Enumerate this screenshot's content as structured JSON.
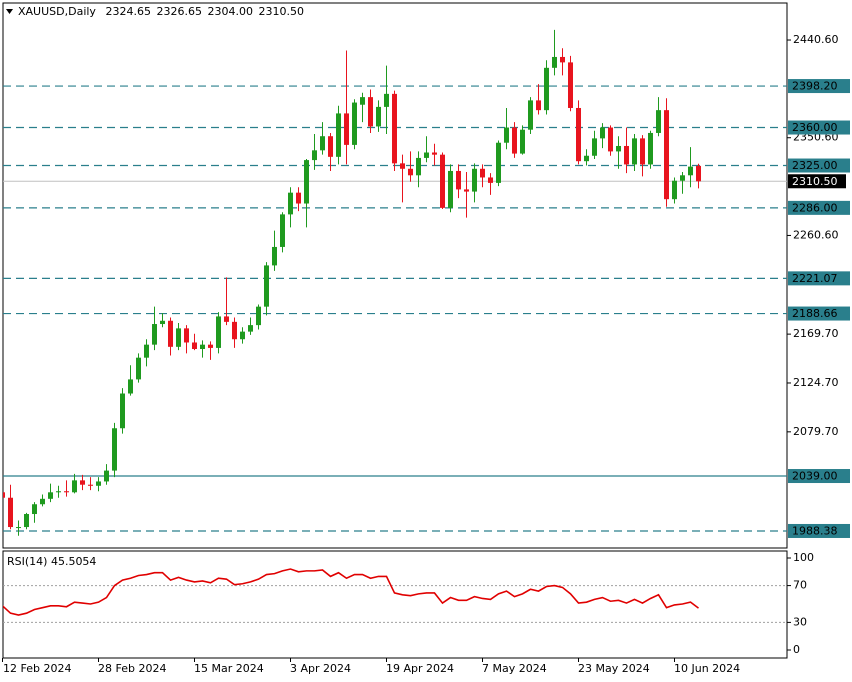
{
  "chart_data": {
    "type": "candlestick",
    "title": "XAUUSD,Daily",
    "title_values": [
      "2324.65",
      "2326.65",
      "2304.00",
      "2310.50"
    ],
    "categories": [
      "12 Feb 2024",
      null,
      null,
      null,
      null,
      null,
      null,
      null,
      null,
      null,
      null,
      null,
      "28 Feb 2024",
      null,
      null,
      null,
      null,
      null,
      null,
      null,
      null,
      null,
      null,
      null,
      "15 Mar 2024",
      null,
      null,
      null,
      null,
      null,
      null,
      null,
      null,
      null,
      null,
      null,
      "3 Apr 2024",
      null,
      null,
      null,
      null,
      null,
      null,
      null,
      null,
      null,
      null,
      null,
      "19 Apr 2024",
      null,
      null,
      null,
      null,
      null,
      null,
      null,
      null,
      null,
      null,
      null,
      "7 May 2024",
      null,
      null,
      null,
      null,
      null,
      null,
      null,
      null,
      null,
      null,
      null,
      "23 May 2024",
      null,
      null,
      null,
      null,
      null,
      null,
      null,
      null,
      null,
      null,
      null,
      "10 Jun 2024",
      null,
      null,
      null
    ],
    "open": [
      2024,
      2019,
      1992,
      1992,
      2004,
      2013,
      2018,
      2024,
      2025,
      2024,
      2035,
      2031,
      2030,
      2034,
      2044,
      2083,
      2115,
      2128,
      2148,
      2160,
      2179,
      2182,
      2158,
      2175,
      2162,
      2156,
      2160,
      2157,
      2186,
      2181,
      2165,
      2172,
      2178,
      2195,
      2233,
      2250,
      2280,
      2300,
      2290,
      2330,
      2339,
      2352,
      2333,
      2373,
      2344,
      2381,
      2388,
      2361,
      2379,
      2391,
      2327,
      2322,
      2316,
      2332,
      2337,
      2335,
      2286,
      2320,
      2303,
      2301,
      2322,
      2314,
      2309,
      2346,
      2360,
      2336,
      2358,
      2385,
      2376,
      2415,
      2425,
      2420,
      2378,
      2329,
      2334,
      2350,
      2360,
      2338,
      2343,
      2326,
      2350,
      2326,
      2355,
      2376,
      2294,
      2311,
      2316,
      2324.65
    ],
    "high": [
      2032,
      2031,
      1998,
      2005,
      2015,
      2022,
      2032,
      2030,
      2035,
      2041,
      2040,
      2038,
      2038,
      2050,
      2088,
      2120,
      2141,
      2152,
      2165,
      2195,
      2189,
      2185,
      2180,
      2178,
      2170,
      2164,
      2163,
      2190,
      2222,
      2185,
      2176,
      2185,
      2197,
      2236,
      2265,
      2282,
      2305,
      2305,
      2331,
      2354,
      2365,
      2355,
      2380,
      2431,
      2386,
      2392,
      2395,
      2385,
      2417,
      2394,
      2335,
      2338,
      2338,
      2352,
      2345,
      2337,
      2326,
      2326,
      2319,
      2327,
      2326,
      2318,
      2348,
      2378,
      2365,
      2362,
      2388,
      2400,
      2422,
      2450,
      2433,
      2426,
      2385,
      2340,
      2357,
      2364,
      2362,
      2352,
      2360,
      2354,
      2353,
      2357,
      2388,
      2387,
      2314,
      2319,
      2342,
      2326.65
    ],
    "low": [
      2011,
      1990,
      1984,
      1990,
      1996,
      2011,
      2015,
      2019,
      2020,
      2023,
      2026,
      2026,
      2025,
      2031,
      2038,
      2078,
      2113,
      2125,
      2140,
      2155,
      2176,
      2150,
      2155,
      2152,
      2155,
      2148,
      2146,
      2152,
      2178,
      2157,
      2161,
      2169,
      2174,
      2187,
      2228,
      2245,
      2268,
      2283,
      2268,
      2321,
      2335,
      2320,
      2326,
      2326,
      2340,
      2365,
      2355,
      2356,
      2354,
      2320,
      2291,
      2310,
      2305,
      2328,
      2325,
      2285,
      2282,
      2295,
      2277,
      2291,
      2305,
      2298,
      2306,
      2340,
      2332,
      2335,
      2354,
      2372,
      2372,
      2408,
      2408,
      2375,
      2326,
      2325,
      2331,
      2341,
      2334,
      2322,
      2318,
      2320,
      2315,
      2322,
      2352,
      2287,
      2290,
      2299,
      2305,
      2304
    ],
    "close": [
      2019,
      1992,
      1992,
      2004,
      2013,
      2018,
      2024,
      2025,
      2024,
      2035,
      2031,
      2030,
      2034,
      2044,
      2083,
      2115,
      2128,
      2148,
      2160,
      2179,
      2182,
      2158,
      2175,
      2162,
      2156,
      2160,
      2157,
      2186,
      2181,
      2165,
      2172,
      2178,
      2195,
      2233,
      2250,
      2280,
      2300,
      2290,
      2330,
      2339,
      2352,
      2333,
      2373,
      2344,
      2383,
      2388,
      2361,
      2379,
      2391,
      2327,
      2322,
      2316,
      2332,
      2337,
      2335,
      2286,
      2320,
      2303,
      2301,
      2322,
      2314,
      2309,
      2346,
      2360,
      2336,
      2358,
      2385,
      2376,
      2415,
      2425,
      2420,
      2378,
      2329,
      2334,
      2350,
      2360,
      2338,
      2343,
      2326,
      2350,
      2326,
      2355,
      2376,
      2294,
      2311,
      2316,
      2324,
      2310.5
    ],
    "up_color": "#1f9a1f",
    "down_color": "#e8141e",
    "ylim": [
      1972.7,
      2474.7
    ],
    "yticks": [
      {
        "value": 2440.6,
        "label": "2440.60"
      },
      {
        "value": 2350.6,
        "label": "2350.60"
      },
      {
        "value": 2260.6,
        "label": "2260.60"
      },
      {
        "value": 2169.7,
        "label": "2169.70"
      },
      {
        "value": 2124.7,
        "label": "2124.70"
      },
      {
        "value": 2079.7,
        "label": "2079.70"
      }
    ],
    "level_color": "#2a7f8c",
    "levels": [
      {
        "value": 2398.2,
        "label": "2398.20",
        "dash": true
      },
      {
        "value": 2360,
        "label": "2360.00",
        "dash": true
      },
      {
        "value": 2325,
        "label": "2325.00",
        "dash": true
      },
      {
        "value": 2286,
        "label": "2286.00",
        "dash": true
      },
      {
        "value": 2221.07,
        "label": "2221.07",
        "dash": true
      },
      {
        "value": 2188.66,
        "label": "2188.66",
        "dash": true
      },
      {
        "value": 2039,
        "label": "2039.00",
        "dash": false
      },
      {
        "value": 1988.38,
        "label": "1988.38",
        "dash": true
      }
    ],
    "current": {
      "value": 2310.5,
      "label": "2310.50"
    },
    "rsi": {
      "title": "RSI(14) 45.5054",
      "color": "#e00000",
      "values": [
        48,
        40,
        38,
        40,
        44,
        46,
        48,
        48,
        47,
        52,
        51,
        50,
        52,
        57,
        70,
        76,
        78,
        81,
        82,
        84,
        84,
        76,
        79,
        76,
        74,
        75,
        73,
        78,
        77,
        71,
        72,
        74,
        77,
        82,
        83,
        86,
        88,
        85,
        86,
        86,
        87,
        80,
        84,
        78,
        82,
        82,
        78,
        80,
        80,
        62,
        60,
        59,
        61,
        62,
        62,
        51,
        57,
        54,
        54,
        58,
        56,
        55,
        61,
        64,
        58,
        61,
        66,
        64,
        69,
        70,
        68,
        61,
        51,
        52,
        55,
        57,
        53,
        54,
        51,
        55,
        51,
        56,
        60,
        46,
        49,
        50,
        52,
        45.5054
      ],
      "ylim": [
        -8.7,
        107.6
      ],
      "yticks": [
        100,
        70,
        30,
        0
      ],
      "levels": [
        70,
        30
      ]
    }
  }
}
